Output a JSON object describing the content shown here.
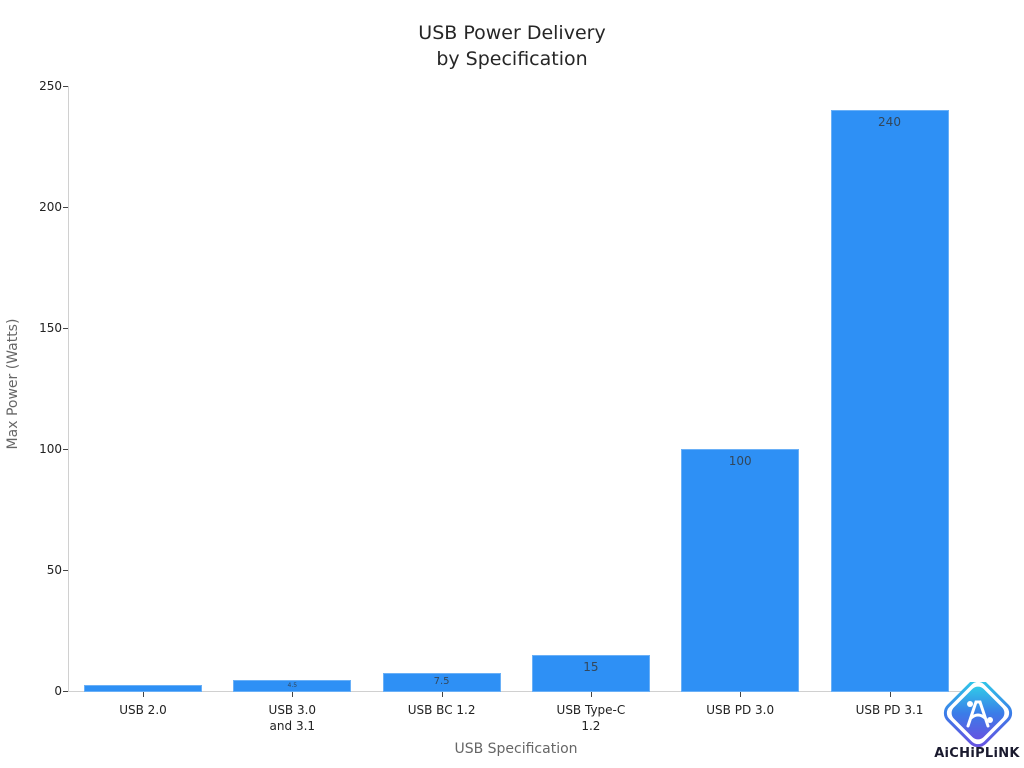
{
  "chart_data": {
    "type": "bar",
    "title": "USB Power Delivery by Specification",
    "title_lines": [
      "USB Power Delivery",
      "by Specification"
    ],
    "xlabel": "USB Specification",
    "ylabel": "Max Power (Watts)",
    "categories": [
      "USB 2.0",
      "USB 3.0 and 3.1",
      "USB BC 1.2",
      "USB Type-C 1.2",
      "USB PD 3.0",
      "USB PD 3.1"
    ],
    "category_lines": [
      [
        "USB 2.0"
      ],
      [
        "USB 3.0",
        "and 3.1"
      ],
      [
        "USB BC 1.2"
      ],
      [
        "USB Type-C",
        "1.2"
      ],
      [
        "USB PD 3.0"
      ],
      [
        "USB PD 3.1"
      ]
    ],
    "values": [
      2.5,
      4.5,
      7.5,
      15,
      100,
      240
    ],
    "data_labels": [
      "",
      "4.5",
      "7.5",
      "15",
      "100",
      "240"
    ],
    "ylim": [
      0,
      250
    ],
    "yticks": [
      0,
      50,
      100,
      150,
      200,
      250
    ],
    "grid": false,
    "legend": null,
    "bar_color": "#2e90f5"
  },
  "watermark": {
    "text": "AiCHiPLiNK"
  }
}
